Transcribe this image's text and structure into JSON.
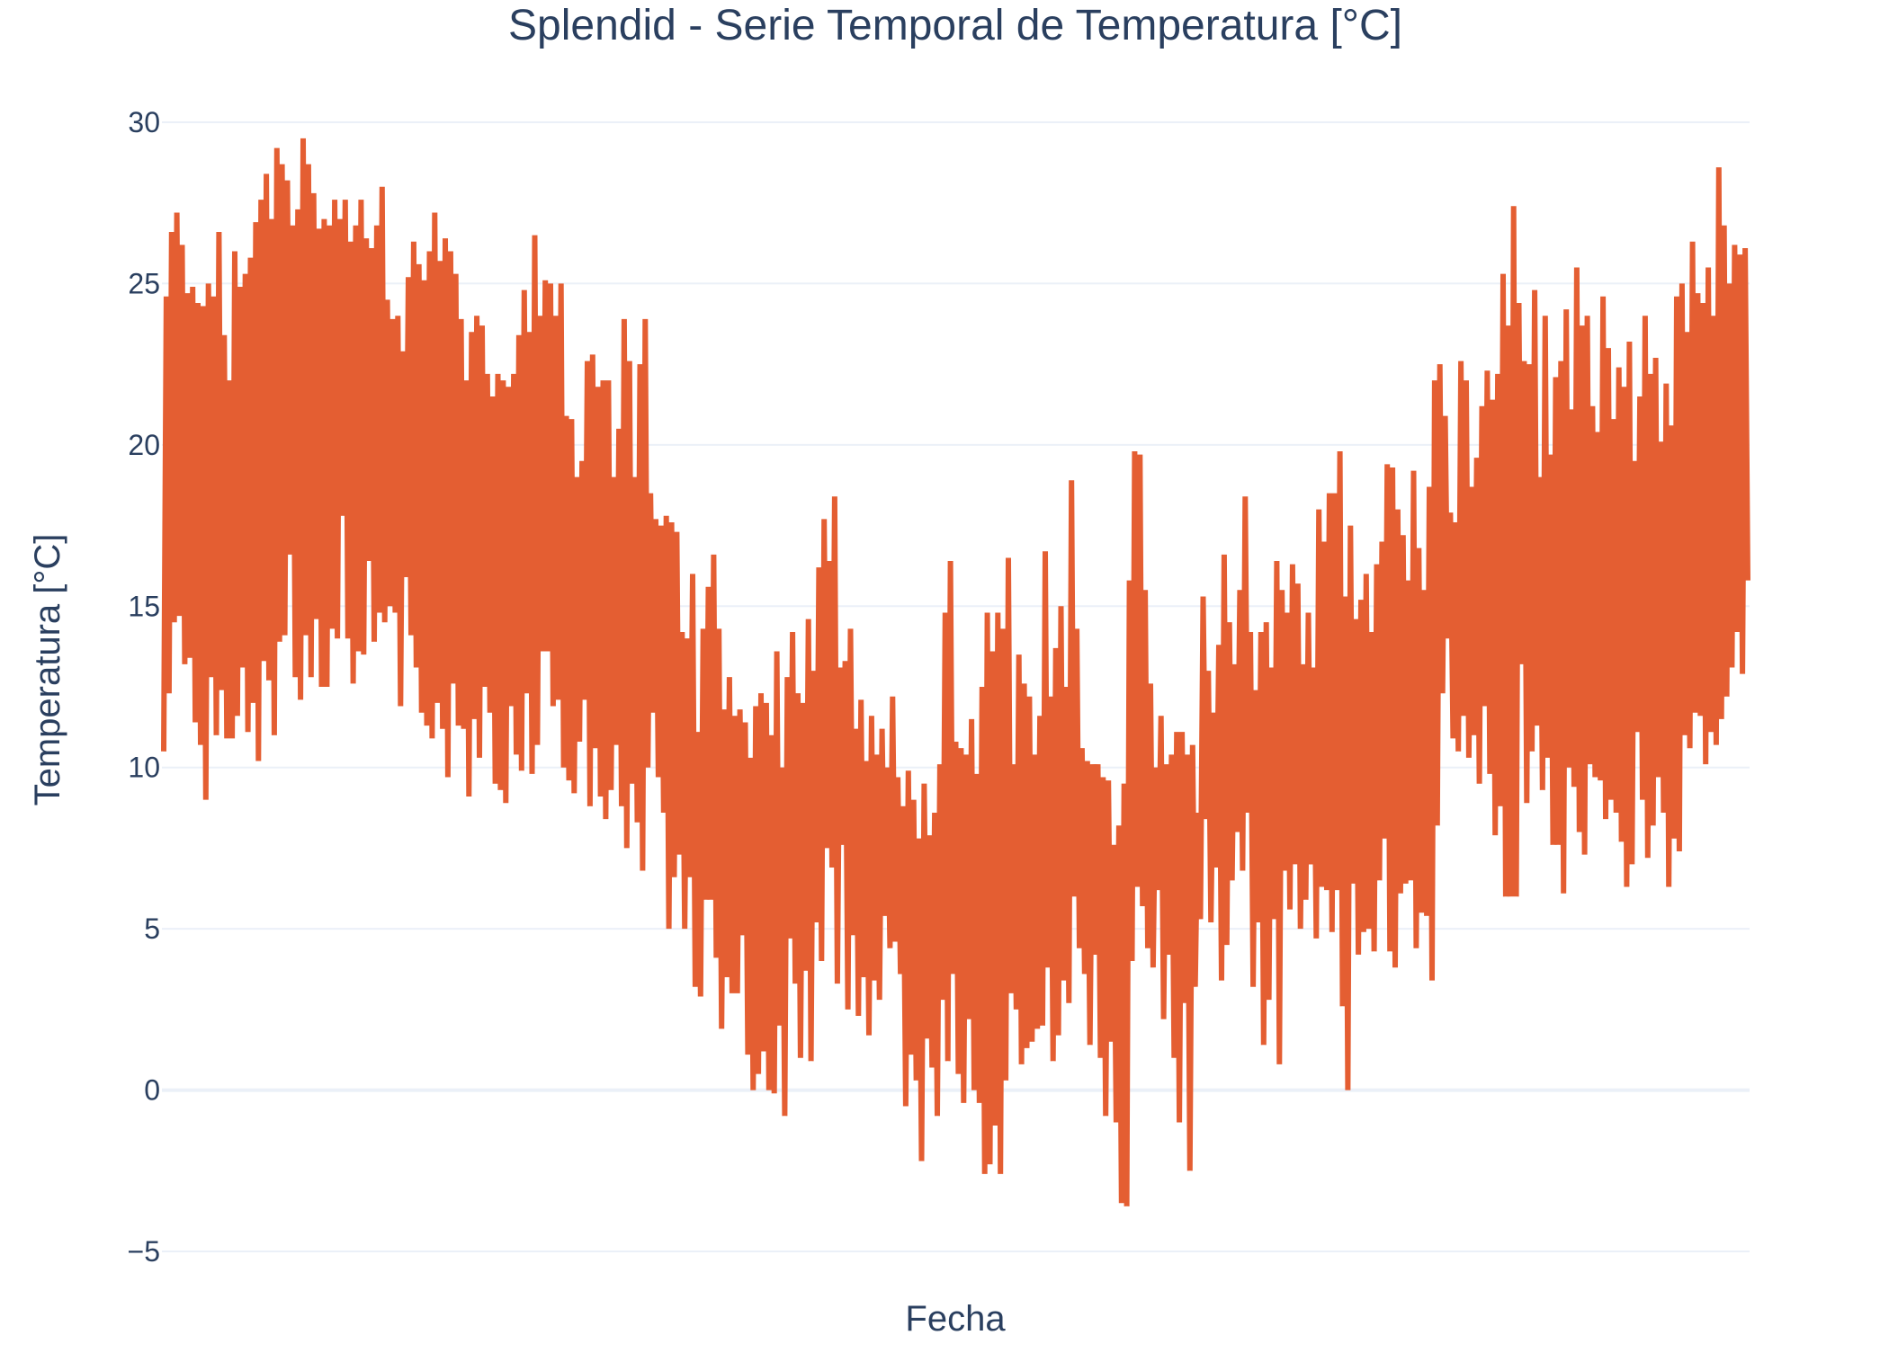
{
  "chart_data": {
    "type": "line",
    "title": "Splendid - Serie Temporal de Temperatura [°C]",
    "xlabel": "Fecha",
    "ylabel": "Temperatura [°C]",
    "ylim": [
      -6.5,
      31
    ],
    "yticks": [
      30,
      25,
      20,
      15,
      10,
      5,
      0,
      -5
    ],
    "ytick_labels": [
      "30",
      "25",
      "20",
      "15",
      "10",
      "5",
      "0",
      "−5"
    ],
    "grid": true,
    "legend": "none",
    "series": [
      {
        "color": "#e45e32",
        "values": [
          10.5,
          24.6,
          12.3,
          26.6,
          14.5,
          27.2,
          14.7,
          26.2,
          13.2,
          24.7,
          13.4,
          24.9,
          11.4,
          24.4,
          10.7,
          24.3,
          9.0,
          25.0,
          12.8,
          24.6,
          11.0,
          26.6,
          12.4,
          23.4,
          10.9,
          22.0,
          10.9,
          26.0,
          11.6,
          24.9,
          13.1,
          25.3,
          11.1,
          25.8,
          12.0,
          26.9,
          10.2,
          27.6,
          13.3,
          28.4,
          12.7,
          27.0,
          11.0,
          29.2,
          13.9,
          28.7,
          14.1,
          28.2,
          16.6,
          26.8,
          12.8,
          27.3,
          12.1,
          29.5,
          14.1,
          28.7,
          12.8,
          27.8,
          14.6,
          26.7,
          12.5,
          27.0,
          12.5,
          26.8,
          14.3,
          27.6,
          14.0,
          27.0,
          17.8,
          27.6,
          14.0,
          26.3,
          12.6,
          26.8,
          13.6,
          27.6,
          13.5,
          26.4,
          16.4,
          26.1,
          13.9,
          26.8,
          14.8,
          28.0,
          14.5,
          24.5,
          15.0,
          23.9,
          14.8,
          24.0,
          11.9,
          22.9,
          15.9,
          25.2,
          14.1,
          26.3,
          13.1,
          25.6,
          11.7,
          25.1,
          11.3,
          26.0,
          10.9,
          27.2,
          12.0,
          25.7,
          11.2,
          26.4,
          9.7,
          26.0,
          12.6,
          25.3,
          11.3,
          23.9,
          11.2,
          22.0,
          9.1,
          23.5,
          11.5,
          24.0,
          10.3,
          23.7,
          12.5,
          22.2,
          11.7,
          21.5,
          9.5,
          22.2,
          9.3,
          22.0,
          8.9,
          21.8,
          11.9,
          22.2,
          10.4,
          23.4,
          9.9,
          24.8,
          12.3,
          23.5,
          9.8,
          26.5,
          10.7,
          24.0,
          13.6,
          25.1,
          13.6,
          25.0,
          11.9,
          24.0,
          12.1,
          25.0,
          10.0,
          20.9,
          9.6,
          20.8,
          9.2,
          19.0,
          10.8,
          19.5,
          12.1,
          22.6,
          8.8,
          22.8,
          10.6,
          21.8,
          9.1,
          22.0,
          8.4,
          22.0,
          9.3,
          19.0,
          10.7,
          20.5,
          8.8,
          23.9,
          7.5,
          22.6,
          9.5,
          19.0,
          8.3,
          22.5,
          6.8,
          23.9,
          10.0,
          18.5,
          11.7,
          17.7,
          9.7,
          17.5,
          8.6,
          17.8,
          5.0,
          17.6,
          6.6,
          17.3,
          7.3,
          14.2,
          5.0,
          14.0,
          6.6,
          16.0,
          3.2,
          11.1,
          2.9,
          14.3,
          5.9,
          15.6,
          5.9,
          16.6,
          4.1,
          14.3,
          1.9,
          11.8,
          3.5,
          12.8,
          3.0,
          11.6,
          3.0,
          11.8,
          4.8,
          11.4,
          1.1,
          10.3,
          0.0,
          11.9,
          0.5,
          12.3,
          1.2,
          12.0,
          0.0,
          11.0,
          -0.1,
          13.6,
          2.0,
          10.0,
          -0.8,
          12.8,
          4.7,
          14.2,
          3.3,
          12.3,
          1.0,
          12.0,
          3.7,
          14.6,
          0.9,
          13.0,
          5.2,
          16.2,
          4.0,
          17.7,
          7.5,
          16.4,
          6.9,
          18.4,
          3.3,
          13.1,
          7.6,
          13.3,
          2.5,
          14.3,
          4.8,
          11.2,
          2.3,
          12.1,
          3.5,
          10.2,
          1.7,
          11.6,
          3.4,
          10.4,
          2.8,
          11.2,
          5.4,
          10.0,
          4.4,
          12.2,
          4.6,
          9.7,
          3.6,
          8.8,
          -0.5,
          9.9,
          1.1,
          9.0,
          0.3,
          7.8,
          -2.2,
          9.5,
          1.6,
          7.9,
          0.7,
          8.6,
          -0.8,
          10.1,
          2.8,
          14.8,
          0.9,
          16.4,
          3.6,
          10.8,
          0.5,
          10.6,
          -0.4,
          10.4,
          2.2,
          11.5,
          0.0,
          9.8,
          -0.4,
          12.5,
          -2.6,
          14.8,
          -2.3,
          13.6,
          -1.1,
          14.8,
          -2.6,
          14.3,
          0.3,
          16.5,
          3.0,
          10.1,
          2.5,
          13.5,
          0.8,
          12.6,
          1.3,
          12.2,
          1.5,
          10.4,
          1.9,
          11.6,
          2.0,
          16.7,
          3.8,
          12.2,
          0.9,
          13.7,
          1.7,
          15.0,
          3.4,
          12.5,
          2.7,
          18.9,
          6.0,
          14.3,
          4.4,
          10.6,
          3.6,
          10.2,
          1.4,
          10.1,
          4.2,
          10.1,
          1.0,
          9.7,
          -0.8,
          9.6,
          1.5,
          7.6,
          -1.0,
          8.2,
          -3.5,
          9.5,
          -3.6,
          15.8,
          4.0,
          19.8,
          6.3,
          19.7,
          5.7,
          15.5,
          4.4,
          12.6,
          3.8,
          10.0,
          6.2,
          11.6,
          2.2,
          10.1,
          4.2,
          10.4,
          1.0,
          11.1,
          -1.0,
          11.1,
          2.7,
          10.4,
          -2.5,
          10.7,
          3.2,
          8.6,
          5.3,
          15.3,
          8.4,
          13.0,
          5.2,
          11.7,
          6.9,
          13.8,
          3.4,
          16.6,
          4.5,
          14.5,
          6.5,
          13.2,
          8.0,
          15.5,
          6.8,
          18.4,
          8.6,
          14.2,
          3.2,
          12.4,
          5.2,
          14.2,
          1.4,
          14.5,
          2.8,
          13.1,
          5.3,
          16.4,
          0.8,
          15.5,
          6.8,
          14.8,
          5.6,
          16.3,
          7.0,
          15.7,
          5.0,
          13.2,
          5.9,
          14.8,
          7.0,
          13.1,
          4.7,
          18.0,
          6.3,
          17.0,
          6.2,
          18.5,
          4.9,
          18.5,
          6.2,
          19.8,
          2.6,
          15.3,
          0.0,
          17.5,
          6.4,
          14.6,
          4.2,
          15.2,
          4.9,
          16.0,
          5.0,
          14.2,
          4.3,
          16.3,
          6.5,
          17.0,
          7.8,
          19.4,
          4.3,
          19.3,
          3.8,
          18.0,
          6.1,
          17.2,
          6.4,
          15.8,
          6.5,
          19.2,
          4.4,
          16.8,
          5.5,
          15.5,
          5.4,
          18.7,
          3.4,
          22.0,
          8.2,
          22.5,
          12.3,
          20.9,
          14.0,
          17.9,
          10.9,
          17.6,
          10.5,
          22.6,
          11.6,
          22.0,
          10.3,
          18.7,
          11.0,
          19.6,
          9.5,
          21.2,
          11.9,
          22.3,
          9.8,
          21.4,
          7.9,
          22.2,
          8.8,
          25.3,
          6.0,
          23.7,
          6.0,
          27.4,
          6.0,
          24.4,
          13.2,
          22.6,
          8.9,
          22.5,
          10.5,
          24.8,
          11.3,
          19.0,
          9.3,
          24.0,
          10.3,
          19.7,
          7.6,
          22.1,
          7.6,
          22.6,
          6.1,
          24.2,
          10.0,
          21.1,
          9.4,
          25.5,
          8.0,
          23.7,
          7.3,
          24.0,
          10.1,
          21.2,
          9.7,
          20.4,
          9.6,
          24.6,
          8.4,
          23.0,
          9.0,
          20.8,
          8.6,
          22.4,
          7.7,
          21.8,
          6.3,
          23.2,
          7.0,
          19.5,
          11.1,
          21.5,
          9.0,
          24.0,
          7.2,
          22.2,
          8.2,
          22.7,
          9.7,
          20.1,
          8.6,
          21.9,
          6.3,
          20.6,
          7.8,
          24.6,
          7.4,
          25.0,
          11.0,
          23.5,
          10.6,
          26.3,
          11.7,
          24.7,
          11.6,
          24.4,
          10.1,
          25.5,
          11.1,
          24.0,
          10.7,
          28.6,
          11.5,
          26.8,
          12.2,
          25.0,
          13.1,
          26.2,
          14.2,
          25.9,
          12.9,
          26.1,
          15.8
        ]
      }
    ]
  }
}
